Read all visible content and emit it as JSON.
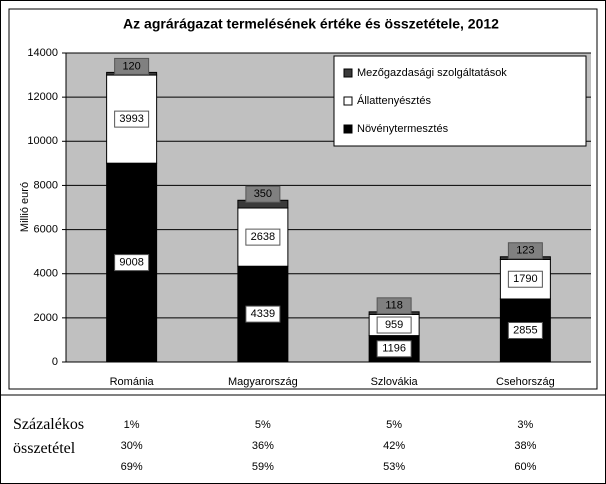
{
  "chart_data": {
    "type": "stacked_bar",
    "title": "Az agrárágazat termelésének értéke és összetétele, 2012",
    "y_label": "Millió euró",
    "categories": [
      "Románia",
      "Magyarország",
      "Szlovákia",
      "Csehország"
    ],
    "series": [
      {
        "name": "Növénytermesztés",
        "color": "#000000",
        "values": [
          9008,
          4339,
          1196,
          2855
        ]
      },
      {
        "name": "Állattenyésztés",
        "color": "#ffffff",
        "values": [
          3993,
          2638,
          959,
          1790
        ]
      },
      {
        "name": "Mezőgazdasági szolgáltatások",
        "color": "#3a3a3a",
        "values": [
          120,
          350,
          118,
          123
        ]
      }
    ],
    "ylim": [
      0,
      14000
    ],
    "yticks": [
      0,
      2000,
      4000,
      6000,
      8000,
      10000,
      12000,
      14000
    ],
    "grid": true,
    "legend": "upper right"
  },
  "table": {
    "label": "Százalékos összetétel",
    "rows": [
      [
        "1%",
        "5%",
        "5%",
        "3%"
      ],
      [
        "30%",
        "36%",
        "42%",
        "38%"
      ],
      [
        "69%",
        "59%",
        "53%",
        "60%"
      ]
    ]
  }
}
